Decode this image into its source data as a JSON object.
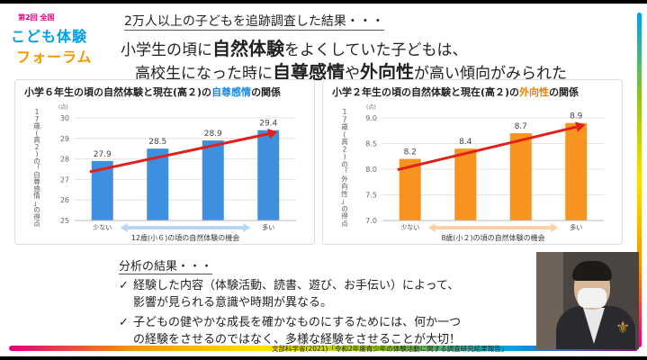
{
  "logo": {
    "small": "第2回 全国",
    "line1": "こども体験",
    "line2": "フォーラム"
  },
  "header_note": "2万人以上の子どもを追跡調査した結果・・・",
  "headline": {
    "line1_pre": "小学生の頃に",
    "line1_b": "自然体験",
    "line1_post": "をよくしていた子どもは、",
    "line2_pre": "高校生になった時に",
    "line2_b1": "自尊感情",
    "line2_mid": "や",
    "line2_b2": "外向性",
    "line2_post": "が高い傾向がみられた"
  },
  "colors": {
    "blue_bar": "#3f8fe0",
    "orange_bar": "#f7931e",
    "arrow": "#e0201b",
    "axis_arrow_blue": "#b6d6f2",
    "axis_arrow_orange": "#fbd2a6"
  },
  "chart_data": [
    {
      "type": "bar",
      "title_pre": "小学６年生の頃の自然体験と現在(高２)の",
      "title_hl": "自尊感情",
      "title_post": "の関係",
      "ylabel": "17歳(高2)の「自尊感情」の得点",
      "unit": "(点)",
      "ylim": [
        25,
        30
      ],
      "yticks": [
        "25",
        "26",
        "27",
        "28",
        "29",
        "30"
      ],
      "categories": [
        "少ない",
        "",
        "",
        "多い"
      ],
      "values": [
        27.9,
        28.5,
        28.9,
        29.4
      ],
      "labels": [
        "27.9",
        "28.5",
        "28.9",
        "29.4"
      ],
      "xlabel": "12歳(小６)の頃の自然体験の機会"
    },
    {
      "type": "bar",
      "title_pre": "小学２年生の頃の自然体験と現在(高２)の",
      "title_hl": "外向性",
      "title_post": "の関係",
      "ylabel": "17歳(高2)の「外向性」の得点",
      "unit": "(点)",
      "ylim": [
        7.0,
        9.0
      ],
      "yticks": [
        "7.0",
        "7.5",
        "8.0",
        "8.5",
        "9.0"
      ],
      "categories": [
        "少ない",
        "",
        "",
        "多い"
      ],
      "values": [
        8.2,
        8.4,
        8.7,
        8.9
      ],
      "labels": [
        "8.2",
        "8.4",
        "8.7",
        "8.9"
      ],
      "xlabel": "8歳(小２)の頃の自然体験の機会"
    }
  ],
  "analysis": {
    "title": "分析の結果・・・",
    "bullets": [
      {
        "check": "✓",
        "l1": "経験した内容（体験活動、読書、遊び、お手伝い）によって、",
        "l2": "影響が見られる意識や時期が異なる。"
      },
      {
        "check": "✓",
        "l1": "子どもの健やかな成長を確かなものにするためには、何か一つ",
        "l2": "の経験をさせるのではなく、多様な経験をさせることが大切！"
      }
    ]
  },
  "source": "文部科学省(2021)「令和2年度青少年の体験活動に関する調査研究結果報告」",
  "video": {
    "emblem": "⚜"
  }
}
